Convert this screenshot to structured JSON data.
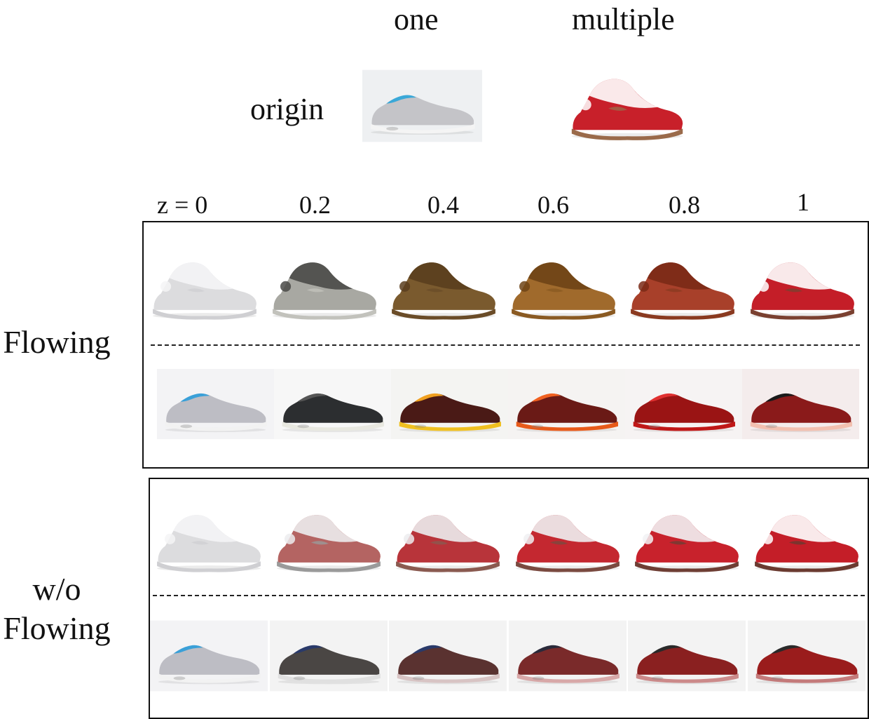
{
  "header": {
    "col_one": "one",
    "col_multiple": "multiple",
    "row_origin": "origin"
  },
  "z_values": [
    "z = 0",
    "0.2",
    "0.4",
    "0.6",
    "0.8",
    "1"
  ],
  "sections": [
    {
      "label_lines": [
        "Flowing"
      ]
    },
    {
      "label_lines": [
        "w/o",
        "Flowing"
      ]
    }
  ],
  "colors": {
    "origin_one": {
      "body": "#c4c4c8",
      "accent": "#3aa8d8",
      "sole": "#f4f4f4",
      "bg": "#eef0f2"
    },
    "origin_multiple": {
      "body": "#c8202a",
      "accent": "#ffffff",
      "sole": "#9a6a4a",
      "bg": "#ffffff"
    },
    "flowing_multiple": [
      {
        "body": "#dcdcde",
        "accent": "#f4f4f6",
        "sole": "#cfcfd2",
        "bg": "#ffffff"
      },
      {
        "body": "#a8a8a2",
        "accent": "#4a4a48",
        "sole": "#c2c2bc",
        "bg": "#ffffff"
      },
      {
        "body": "#7a5a2e",
        "accent": "#5a3e1e",
        "sole": "#6a4c28",
        "bg": "#ffffff"
      },
      {
        "body": "#a06a2c",
        "accent": "#6e4416",
        "sole": "#8a5a22",
        "bg": "#ffffff"
      },
      {
        "body": "#a8402a",
        "accent": "#7a2a16",
        "sole": "#8a3a20",
        "bg": "#ffffff"
      },
      {
        "body": "#c41e28",
        "accent": "#ffffff",
        "sole": "#7a4030",
        "bg": "#ffffff"
      }
    ],
    "flowing_one": [
      {
        "body": "#bdbdc4",
        "accent": "#3aa0d8",
        "sole": "#f2f2f2",
        "bg": "#f3f3f5"
      },
      {
        "body": "#2c2e30",
        "accent": "#555555",
        "sole": "#e8e8e0",
        "bg": "#f7f7f7"
      },
      {
        "body": "#4a1a16",
        "accent": "#f0a020",
        "sole": "#f0c020",
        "bg": "#f4f4f2"
      },
      {
        "body": "#6a1a16",
        "accent": "#f06020",
        "sole": "#e85a1a",
        "bg": "#f5f3f2"
      },
      {
        "body": "#9a1414",
        "accent": "#e03030",
        "sole": "#c01818",
        "bg": "#f6f3f3"
      },
      {
        "body": "#8a1a1a",
        "accent": "#1a1a1a",
        "sole": "#f2c0b0",
        "bg": "#f4ecec"
      }
    ],
    "noflow_multiple": [
      {
        "body": "#dcdcde",
        "accent": "#f4f4f6",
        "sole": "#cfcfd2",
        "bg": "#ffffff"
      },
      {
        "body": "#b46462",
        "accent": "#ececee",
        "sole": "#9a9a9a",
        "bg": "#ffffff"
      },
      {
        "body": "#b8343a",
        "accent": "#ececee",
        "sole": "#8a5a50",
        "bg": "#ffffff"
      },
      {
        "body": "#c42830",
        "accent": "#f0f0f2",
        "sole": "#7a4a40",
        "bg": "#ffffff"
      },
      {
        "body": "#c8222c",
        "accent": "#f2f2f4",
        "sole": "#6e3e34",
        "bg": "#ffffff"
      },
      {
        "body": "#c41e28",
        "accent": "#ffffff",
        "sole": "#6a3a30",
        "bg": "#ffffff"
      }
    ],
    "noflow_one": [
      {
        "body": "#bdbdc4",
        "accent": "#3aa0d8",
        "sole": "#f2f2f2",
        "bg": "#f3f3f5"
      },
      {
        "body": "#4a4644",
        "accent": "#2a3a6a",
        "sole": "#e0e0e0",
        "bg": "#f3f3f3"
      },
      {
        "body": "#5a3230",
        "accent": "#2a3a6a",
        "sole": "#d8c4c4",
        "bg": "#f3f3f3"
      },
      {
        "body": "#7a2a2a",
        "accent": "#2a2a3a",
        "sole": "#d8a8a8",
        "bg": "#f3f3f3"
      },
      {
        "body": "#8a2020",
        "accent": "#2a2a2a",
        "sole": "#cc8a8a",
        "bg": "#f3f3f3"
      },
      {
        "body": "#9a1c1c",
        "accent": "#2a2a2a",
        "sole": "#c47a7a",
        "bg": "#f3f3f3"
      }
    ]
  }
}
